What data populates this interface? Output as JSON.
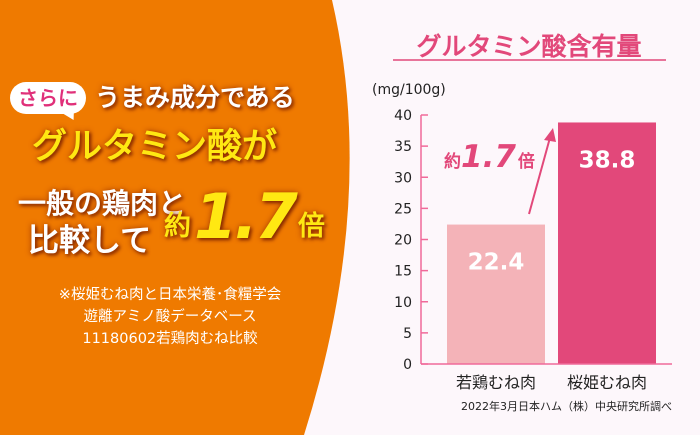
{
  "headline": {
    "bubble": "さらに",
    "line1": "うまみ成分である",
    "line2": "グルタミン酸が",
    "line3": "一般の鶏肉と",
    "line4": "比較して",
    "ratio_prefix": "約",
    "ratio_value": "1.7",
    "ratio_suffix": "倍"
  },
  "footnote": {
    "line1": "※桜姫むね肉と日本栄養･食糧学会",
    "line2": "遊離アミノ酸データベース",
    "line3": "11180602若鶏肉むね比較"
  },
  "colors": {
    "orange": "#ef7a00",
    "pink": "#e2487a",
    "light_pink": "#f4b3b8",
    "yellow": "#ffe812",
    "background": "#fdf7fb"
  },
  "chart_data": {
    "type": "bar",
    "title": "グルタミン酸含有量",
    "ylabel": "(mg/100g)",
    "ylim": [
      0,
      40
    ],
    "yticks": [
      "0",
      "5",
      "10",
      "15",
      "20",
      "25",
      "30",
      "35",
      "40"
    ],
    "categories": [
      "若鶏むね肉",
      "桜姫むね肉"
    ],
    "values": [
      22.4,
      38.8
    ],
    "data_labels": [
      "22.4",
      "38.8"
    ],
    "annotation": {
      "prefix": "約",
      "value": "1.7",
      "suffix": "倍"
    },
    "source": "2022年3月日本ハム（株）中央研究所調べ"
  }
}
